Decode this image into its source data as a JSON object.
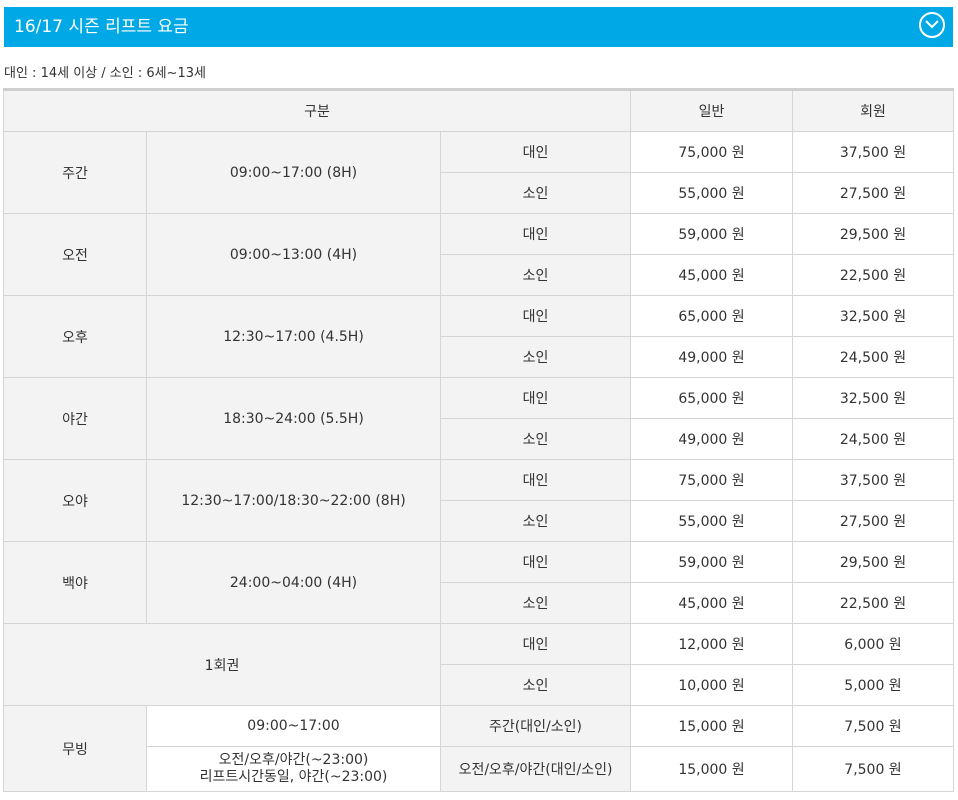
{
  "header": {
    "title": "16/17 시즌 리프트 요금",
    "toggle_icon": "chevron-down-icon"
  },
  "note": "대인 : 14세 이상 / 소인 : 6세~13세",
  "table": {
    "headers": {
      "category": "구분",
      "general": "일반",
      "member": "회원"
    },
    "groups": [
      {
        "name": "주간",
        "time": "09:00~17:00 (8H)",
        "rows": [
          {
            "type": "대인",
            "general": "75,000 원",
            "member": "37,500 원"
          },
          {
            "type": "소인",
            "general": "55,000 원",
            "member": "27,500 원"
          }
        ]
      },
      {
        "name": "오전",
        "time": "09:00~13:00 (4H)",
        "rows": [
          {
            "type": "대인",
            "general": "59,000 원",
            "member": "29,500 원"
          },
          {
            "type": "소인",
            "general": "45,000 원",
            "member": "22,500 원"
          }
        ]
      },
      {
        "name": "오후",
        "time": "12:30~17:00 (4.5H)",
        "rows": [
          {
            "type": "대인",
            "general": "65,000 원",
            "member": "32,500 원"
          },
          {
            "type": "소인",
            "general": "49,000 원",
            "member": "24,500 원"
          }
        ]
      },
      {
        "name": "야간",
        "time": "18:30~24:00 (5.5H)",
        "rows": [
          {
            "type": "대인",
            "general": "65,000 원",
            "member": "32,500 원"
          },
          {
            "type": "소인",
            "general": "49,000 원",
            "member": "24,500 원"
          }
        ]
      },
      {
        "name": "오야",
        "time": "12:30~17:00/18:30~22:00 (8H)",
        "rows": [
          {
            "type": "대인",
            "general": "75,000 원",
            "member": "37,500 원"
          },
          {
            "type": "소인",
            "general": "55,000 원",
            "member": "27,500 원"
          }
        ]
      },
      {
        "name": "백야",
        "time": "24:00~04:00 (4H)",
        "rows": [
          {
            "type": "대인",
            "general": "59,000 원",
            "member": "29,500 원"
          },
          {
            "type": "소인",
            "general": "45,000 원",
            "member": "22,500 원"
          }
        ]
      }
    ],
    "single": {
      "name": "1회권",
      "rows": [
        {
          "type": "대인",
          "general": "12,000 원",
          "member": "6,000 원"
        },
        {
          "type": "소인",
          "general": "10,000 원",
          "member": "5,000 원"
        }
      ]
    },
    "moving": {
      "name": "무빙",
      "rows": [
        {
          "time": "09:00~17:00",
          "type": "주간(대인/소인)",
          "general": "15,000 원",
          "member": "7,500 원"
        },
        {
          "time_line1": "오전/오후/야간(~23:00)",
          "time_line2": "리프트시간동일, 야간(~23:00)",
          "type": "오전/오후/야간(대인/소인)",
          "general": "15,000 원",
          "member": "7,500 원"
        }
      ]
    }
  }
}
